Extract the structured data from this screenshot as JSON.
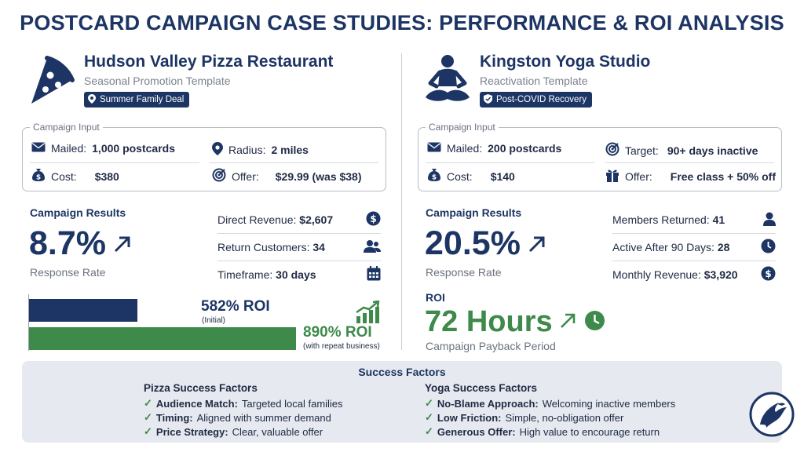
{
  "title": "POSTCARD CAMPAIGN CASE STUDIES: PERFORMANCE & ROI ANALYSIS",
  "pizza": {
    "name": "Hudson Valley Pizza Restaurant",
    "template": "Seasonal Promotion Template",
    "tag": "Summer Family Deal",
    "input_title": "Campaign Input",
    "mailed_label": "Mailed:",
    "mailed_value": "1,000 postcards",
    "radius_label": "Radius:",
    "radius_value": "2 miles",
    "cost_label": "Cost:",
    "cost_value": "$380",
    "offer_label": "Offer:",
    "offer_value": "$29.99 (was $38)",
    "results_title": "Campaign Results",
    "response_value": "8.7%",
    "response_label": "Response Rate",
    "direct_revenue_label": "Direct Revenue:",
    "direct_revenue_value": "$2,607",
    "return_customers_label": "Return Customers:",
    "return_customers_value": "34",
    "timeframe_label": "Timeframe:",
    "timeframe_value": "30 days",
    "roi_initial": "582% ROI",
    "roi_initial_note": "(Initial)",
    "roi_repeat": "890% ROI",
    "roi_repeat_note": "(with repeat business)",
    "roi_initial_pct": 582,
    "roi_repeat_pct": 890
  },
  "yoga": {
    "name": "Kingston Yoga Studio",
    "template": "Reactivation Template",
    "tag": "Post-COVID Recovery",
    "input_title": "Campaign Input",
    "mailed_label": "Mailed:",
    "mailed_value": "200 postcards",
    "target_label": "Target:",
    "target_value": "90+ days inactive",
    "cost_label": "Cost:",
    "cost_value": "$140",
    "offer_label": "Offer:",
    "offer_value": "Free class + 50% off",
    "results_title": "Campaign Results",
    "response_value": "20.5%",
    "response_label": "Response Rate",
    "members_returned_label": "Members Returned:",
    "members_returned_value": "41",
    "active_label": "Active After 90 Days:",
    "active_value": "28",
    "monthly_revenue_label": "Monthly Revenue:",
    "monthly_revenue_value": "$3,920",
    "roi_title": "ROI",
    "payback_value": "72 Hours",
    "payback_label": "Campaign Payback Period"
  },
  "success": {
    "title": "Success Factors",
    "pizza_title": "Pizza Success Factors",
    "pizza_items": [
      {
        "bold": "Audience Match:",
        "text": "Targeted local families"
      },
      {
        "bold": "Timing:",
        "text": "Aligned with summer demand"
      },
      {
        "bold": "Price Strategy:",
        "text": "Clear, valuable offer"
      }
    ],
    "yoga_title": "Yoga Success Factors",
    "yoga_items": [
      {
        "bold": "No-Blame Approach:",
        "text": "Welcoming inactive members"
      },
      {
        "bold": "Low Friction:",
        "text": "Simple, no-obligation offer"
      },
      {
        "bold": "Generous Offer:",
        "text": "High value to encourage return"
      }
    ]
  },
  "colors": {
    "navy": "#1d3564",
    "green": "#3d8a4a",
    "panel": "#e6e9ef"
  },
  "icons": [
    "pizza-icon",
    "yoga-icon",
    "location-pin-icon",
    "shield-icon",
    "mail-icon",
    "money-bag-icon",
    "target-icon",
    "gift-icon",
    "dollar-icon",
    "users-icon",
    "calendar-icon",
    "user-icon",
    "clock-icon",
    "arrow-up-right-icon",
    "growth-chart-icon",
    "check-icon",
    "eagle-logo-icon"
  ]
}
